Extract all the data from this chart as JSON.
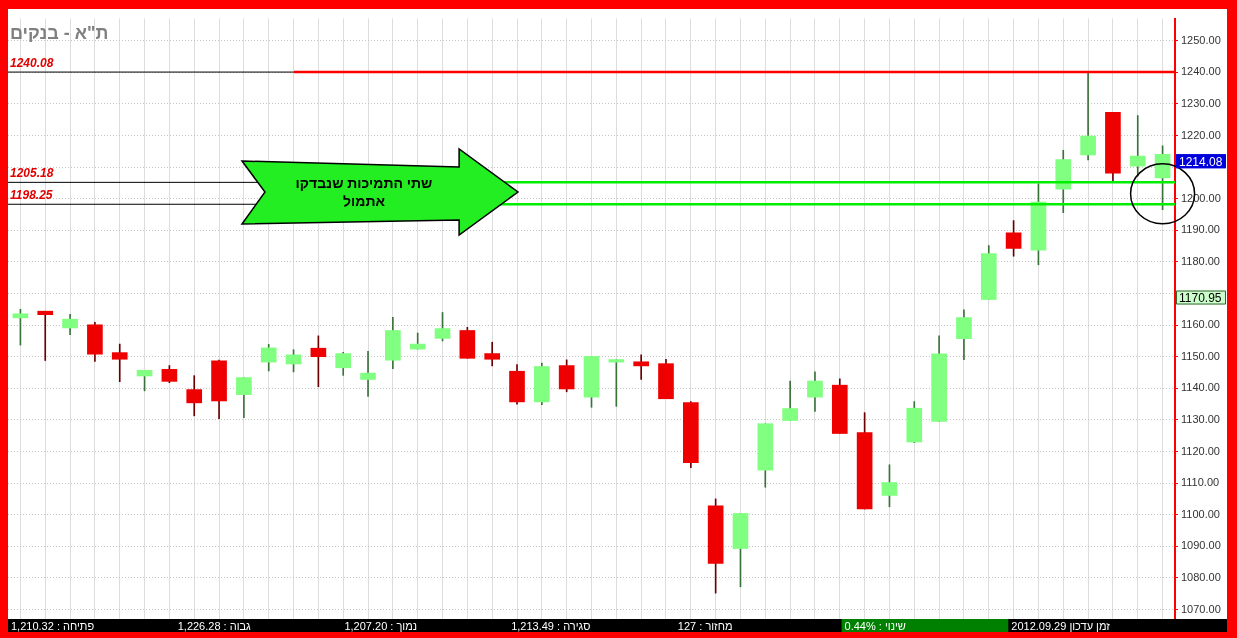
{
  "chart_data": {
    "type": "candlestick",
    "title": "ת\"א - בנקים",
    "categories": [
      null,
      null,
      null,
      null,
      null,
      null,
      null,
      null,
      null,
      null,
      null,
      null,
      null,
      null,
      null,
      null,
      null,
      null,
      null,
      null,
      null,
      null,
      null,
      null,
      null,
      null,
      null,
      null,
      null,
      null,
      null,
      null,
      null,
      null,
      null,
      null,
      null,
      null,
      null,
      null,
      null,
      null,
      null,
      null,
      null,
      null,
      null
    ],
    "ohlc": [
      [
        1162.3,
        1165.0,
        1153.7,
        1163.6
      ],
      [
        1164.4,
        1164.4,
        1148.8,
        1163.3
      ],
      [
        1159.1,
        1163.4,
        1157.0,
        1161.9
      ],
      [
        1160.1,
        1160.9,
        1148.5,
        1150.8
      ],
      [
        1151.3,
        1154.0,
        1142.1,
        1149.2
      ],
      [
        1143.9,
        1145.7,
        1139.2,
        1145.7
      ],
      [
        1146.0,
        1147.2,
        1141.8,
        1142.2
      ],
      [
        1139.6,
        1144.0,
        1131.3,
        1135.4
      ],
      [
        1148.7,
        1148.9,
        1130.4,
        1136.0
      ],
      [
        1138.0,
        1143.4,
        1130.7,
        1143.4
      ],
      [
        1148.3,
        1153.9,
        1145.5,
        1152.8
      ],
      [
        1147.7,
        1152.2,
        1145.2,
        1150.6
      ],
      [
        1152.7,
        1156.6,
        1140.5,
        1150.0
      ],
      [
        1146.5,
        1151.4,
        1144.1,
        1151.0
      ],
      [
        1142.8,
        1151.7,
        1137.4,
        1144.8
      ],
      [
        1148.9,
        1162.5,
        1146.2,
        1158.3
      ],
      [
        1152.4,
        1157.5,
        1152.4,
        1154.0
      ],
      [
        1155.8,
        1164.0,
        1155.0,
        1158.9
      ],
      [
        1158.3,
        1159.3,
        1149.5,
        1149.5
      ],
      [
        1151.0,
        1154.6,
        1147.1,
        1149.2
      ],
      [
        1145.4,
        1147.5,
        1135.0,
        1135.7
      ],
      [
        1135.7,
        1148.0,
        1134.8,
        1146.9
      ],
      [
        1147.2,
        1149.0,
        1138.9,
        1139.8
      ],
      [
        1137.2,
        1150.1,
        1134.0,
        1150.1
      ],
      [
        1148.3,
        1149.1,
        1134.3,
        1149.1
      ],
      [
        1148.4,
        1150.6,
        1142.8,
        1147.1
      ],
      [
        1147.8,
        1149.2,
        1136.7,
        1136.7
      ],
      [
        1135.5,
        1135.8,
        1114.9,
        1116.5
      ],
      [
        1102.8,
        1105.0,
        1075.2,
        1084.6
      ],
      [
        1089.3,
        1100.4,
        1077.2,
        1100.4
      ],
      [
        1114.1,
        1128.8,
        1108.7,
        1128.8
      ],
      [
        1129.8,
        1142.3,
        1129.8,
        1133.6
      ],
      [
        1137.2,
        1145.2,
        1132.7,
        1142.3
      ],
      [
        1141.0,
        1143.0,
        1125.7,
        1125.7
      ],
      [
        1126.0,
        1132.3,
        1101.8,
        1101.8
      ],
      [
        1106.1,
        1115.8,
        1102.5,
        1110.2
      ],
      [
        1123.0,
        1135.8,
        1122.8,
        1133.7
      ],
      [
        1129.5,
        1156.6,
        1129.5,
        1150.9
      ],
      [
        1155.7,
        1164.8,
        1149.1,
        1162.4
      ],
      [
        1168.1,
        1185.2,
        1168.1,
        1182.6
      ],
      [
        1189.2,
        1193.1,
        1181.8,
        1184.3
      ],
      [
        1183.7,
        1204.7,
        1179.1,
        1198.9
      ],
      [
        1203.0,
        1215.3,
        1195.6,
        1212.4
      ],
      [
        1213.9,
        1240.0,
        1212.3,
        1219.8
      ],
      [
        1227.3,
        1227.3,
        1205.5,
        1208.1
      ],
      [
        1210.3,
        1226.3,
        1207.2,
        1213.5
      ],
      [
        1206.6,
        1216.7,
        1196.5,
        1214.08
      ]
    ],
    "colors": [
      "#80ff80",
      "#ee0000",
      "#80ff80",
      "#ee0000",
      "#ee0000",
      "#80ff80",
      "#ee0000",
      "#ee0000",
      "#ee0000",
      "#80ff80",
      "#80ff80",
      "#80ff80",
      "#ee0000",
      "#80ff80",
      "#80ff80",
      "#80ff80",
      "#80ff80",
      "#80ff80",
      "#ee0000",
      "#ee0000",
      "#ee0000",
      "#80ff80",
      "#ee0000",
      "#80ff80",
      "#80ff80",
      "#ee0000",
      "#ee0000",
      "#ee0000",
      "#ee0000",
      "#80ff80",
      "#80ff80",
      "#80ff80",
      "#80ff80",
      "#ee0000",
      "#ee0000",
      "#80ff80",
      "#80ff80",
      "#80ff80",
      "#80ff80",
      "#80ff80",
      "#ee0000",
      "#80ff80",
      "#80ff80",
      "#80ff80",
      "#ee0000",
      "#80ff80",
      "#80ff80"
    ],
    "ylim": [
      1067,
      1257
    ],
    "yticks": [
      {
        "value": 1070,
        "label": "1070.00"
      },
      {
        "value": 1080,
        "label": "1080.00"
      },
      {
        "value": 1090,
        "label": "1090.00"
      },
      {
        "value": 1100,
        "label": "1100.00"
      },
      {
        "value": 1110,
        "label": "1110.00"
      },
      {
        "value": 1120,
        "label": "1120.00"
      },
      {
        "value": 1130,
        "label": "1130.00"
      },
      {
        "value": 1140,
        "label": "1140.00"
      },
      {
        "value": 1150,
        "label": "1150.00"
      },
      {
        "value": 1160,
        "label": "1160.00"
      },
      {
        "value": 1170,
        "label": null
      },
      {
        "value": 1180,
        "label": "1180.00"
      },
      {
        "value": 1190,
        "label": "1190.00"
      },
      {
        "value": 1200,
        "label": "1200.00"
      },
      {
        "value": 1210,
        "label": null
      },
      {
        "value": 1220,
        "label": "1220.00"
      },
      {
        "value": 1230,
        "label": "1230.00"
      },
      {
        "value": 1240,
        "label": "1240.00"
      },
      {
        "value": 1250,
        "label": "1250.00"
      }
    ],
    "tick_labels": "y",
    "grid": true,
    "ref_lines": [
      {
        "axis": "y",
        "value": 1240.08,
        "label": "1240.08",
        "color": "#ff0000"
      },
      {
        "axis": "y",
        "value": 1205.18,
        "label": "1205.18",
        "color": "#00ee00"
      },
      {
        "axis": "y",
        "value": 1198.25,
        "label": "1198.25",
        "color": "#00ee00"
      }
    ],
    "annotations": [
      "שתי התמיכות שנבדקו אתמול",
      "1214.08",
      "1170.95",
      "פתיחה : 1,210.32",
      "גבוה : 1,226.28",
      "נמוך : 1,207.20",
      "סגירה : 1,213.49",
      "מחזור : 127",
      "שינוי : 0.44%",
      "זמן עדכון 2012.09.29"
    ]
  }
}
